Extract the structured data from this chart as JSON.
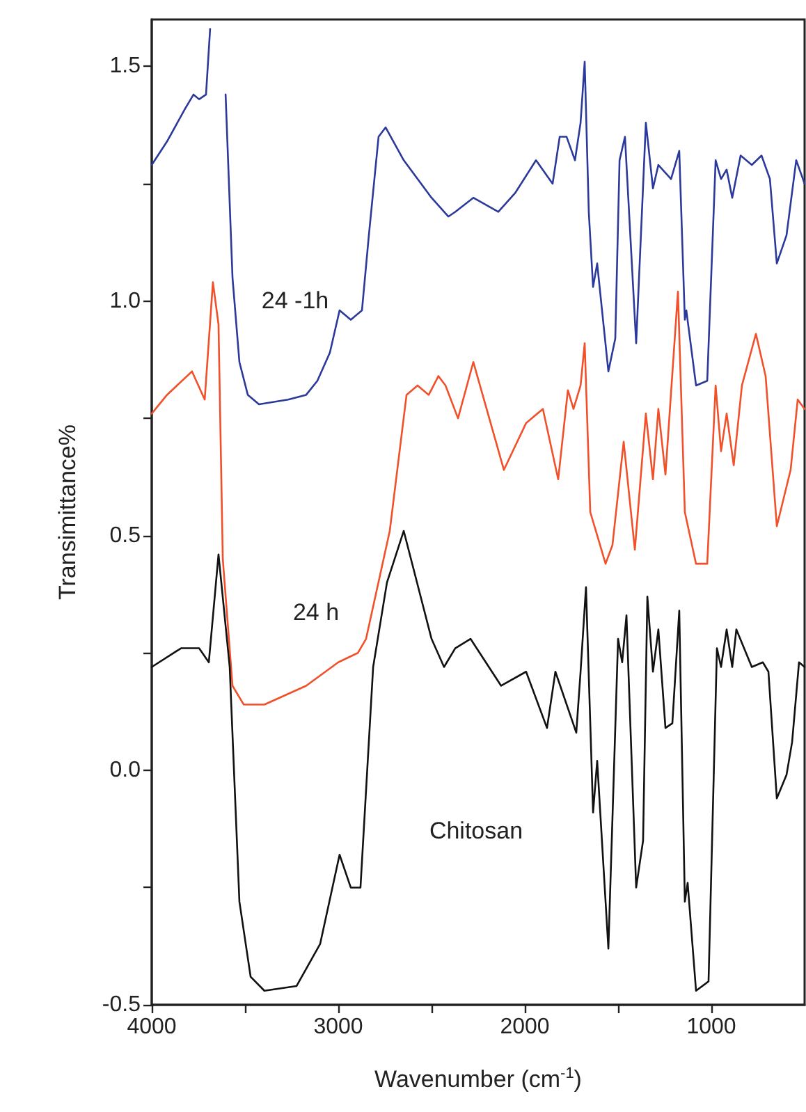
{
  "chart_data": {
    "type": "line",
    "xlabel": "Wavenumber (cm$^{-1}$)",
    "ylabel": "Transimittance%",
    "xlim": [
      4000,
      500
    ],
    "ylim": [
      -0.5,
      1.6
    ],
    "xticks": [
      4000,
      {
        "value": 3500,
        "label": null
      },
      3000,
      {
        "value": 2500,
        "label": null
      },
      2000,
      {
        "value": 1500,
        "label": null
      },
      1000
    ],
    "yticks": [
      -0.5,
      {
        "value": -0.25,
        "label": null
      },
      {
        "value": 0,
        "label": "0.0"
      },
      {
        "value": 0.25,
        "label": null
      },
      0.5,
      {
        "value": 0.75,
        "label": null
      },
      {
        "value": 1,
        "label": "1.0"
      },
      {
        "value": 1.25,
        "label": null
      },
      1.5
    ],
    "grid": false,
    "marker": "none",
    "line_style": "solid",
    "series": [
      {
        "name": "24 -1h",
        "color": "#2b3a9a",
        "x": [
          4000,
          3918,
          3821,
          3776,
          3746,
          3709,
          3687,
          3672,
          3634,
          3604,
          3567,
          3530,
          3485,
          3425,
          3269,
          3172,
          3112,
          3045,
          2993,
          2933,
          2873,
          2836,
          2784,
          2746,
          2649,
          2500,
          2410,
          2373,
          2276,
          2142,
          2052,
          1940,
          1851,
          1813,
          1776,
          1731,
          1701,
          1679,
          1657,
          1634,
          1612,
          1552,
          1515,
          1492,
          1463,
          1403,
          1351,
          1313,
          1284,
          1216,
          1172,
          1142,
          1134,
          1082,
          1022,
          977,
          948,
          918,
          888,
          843,
          783,
          731,
          686,
          649,
          597,
          545,
          500
        ],
        "values": [
          1.29,
          1.34,
          1.41,
          1.44,
          1.43,
          1.44,
          1.58,
          null,
          null,
          1.44,
          1.05,
          0.87,
          0.8,
          0.78,
          0.79,
          0.8,
          0.83,
          0.89,
          0.98,
          0.96,
          0.98,
          1.14,
          1.35,
          1.37,
          1.3,
          1.22,
          1.18,
          1.19,
          1.22,
          1.19,
          1.23,
          1.3,
          1.25,
          1.35,
          1.35,
          1.3,
          1.38,
          1.51,
          1.19,
          1.03,
          1.08,
          0.85,
          0.92,
          1.3,
          1.35,
          0.91,
          1.38,
          1.24,
          1.29,
          1.26,
          1.32,
          0.96,
          0.98,
          0.82,
          0.83,
          1.3,
          1.26,
          1.28,
          1.22,
          1.31,
          1.29,
          1.31,
          1.26,
          1.08,
          1.14,
          1.3,
          1.25
        ]
      },
      {
        "name": "24 h",
        "color": "#f0502a",
        "x": [
          4000,
          3918,
          3784,
          3716,
          3672,
          3642,
          3619,
          3567,
          3507,
          3396,
          3172,
          3000,
          2895,
          2851,
          2724,
          2634,
          2575,
          2515,
          2463,
          2425,
          2358,
          2276,
          2112,
          1993,
          1903,
          1821,
          1769,
          1739,
          1701,
          1679,
          1649,
          1619,
          1567,
          1530,
          1470,
          1410,
          1351,
          1313,
          1284,
          1246,
          1179,
          1142,
          1082,
          1022,
          977,
          948,
          918,
          880,
          836,
          761,
          709,
          649,
          575,
          537,
          500
        ],
        "values": [
          0.76,
          0.8,
          0.85,
          0.79,
          1.04,
          0.95,
          0.45,
          0.18,
          0.14,
          0.14,
          0.18,
          0.23,
          0.25,
          0.28,
          0.51,
          0.8,
          0.82,
          0.8,
          0.84,
          0.82,
          0.75,
          0.87,
          0.64,
          0.74,
          0.77,
          0.62,
          0.81,
          0.77,
          0.82,
          0.91,
          0.55,
          0.51,
          0.44,
          0.48,
          0.7,
          0.47,
          0.76,
          0.62,
          0.77,
          0.63,
          1.02,
          0.55,
          0.44,
          0.44,
          0.82,
          0.68,
          0.76,
          0.65,
          0.82,
          0.93,
          0.84,
          0.52,
          0.64,
          0.79,
          0.77
        ]
      },
      {
        "name": "Chitosan",
        "color": "#111111",
        "x": [
          4000,
          3843,
          3746,
          3694,
          3642,
          3582,
          3530,
          3470,
          3396,
          3224,
          3097,
          2993,
          2933,
          2881,
          2813,
          2739,
          2649,
          2500,
          2433,
          2373,
          2291,
          2127,
          1993,
          1881,
          1836,
          1724,
          1701,
          1672,
          1634,
          1612,
          1552,
          1500,
          1478,
          1455,
          1403,
          1366,
          1343,
          1313,
          1284,
          1246,
          1209,
          1172,
          1142,
          1127,
          1082,
          1015,
          970,
          948,
          918,
          888,
          866,
          783,
          724,
          694,
          649,
          597,
          567,
          530,
          500
        ],
        "values": [
          0.22,
          0.26,
          0.26,
          0.23,
          0.46,
          0.22,
          -0.28,
          -0.44,
          -0.47,
          -0.46,
          -0.37,
          -0.18,
          -0.25,
          -0.25,
          0.22,
          0.4,
          0.51,
          0.28,
          0.22,
          0.26,
          0.28,
          0.18,
          0.21,
          0.09,
          0.21,
          0.08,
          0.21,
          0.39,
          -0.09,
          0.02,
          -0.38,
          0.28,
          0.23,
          0.33,
          -0.25,
          -0.15,
          0.37,
          0.21,
          0.3,
          0.09,
          0.1,
          0.34,
          -0.28,
          -0.24,
          -0.47,
          -0.45,
          0.26,
          0.22,
          0.3,
          0.22,
          0.3,
          0.22,
          0.23,
          0.21,
          -0.06,
          -0.01,
          0.06,
          0.23,
          0.22
        ]
      }
    ]
  }
}
